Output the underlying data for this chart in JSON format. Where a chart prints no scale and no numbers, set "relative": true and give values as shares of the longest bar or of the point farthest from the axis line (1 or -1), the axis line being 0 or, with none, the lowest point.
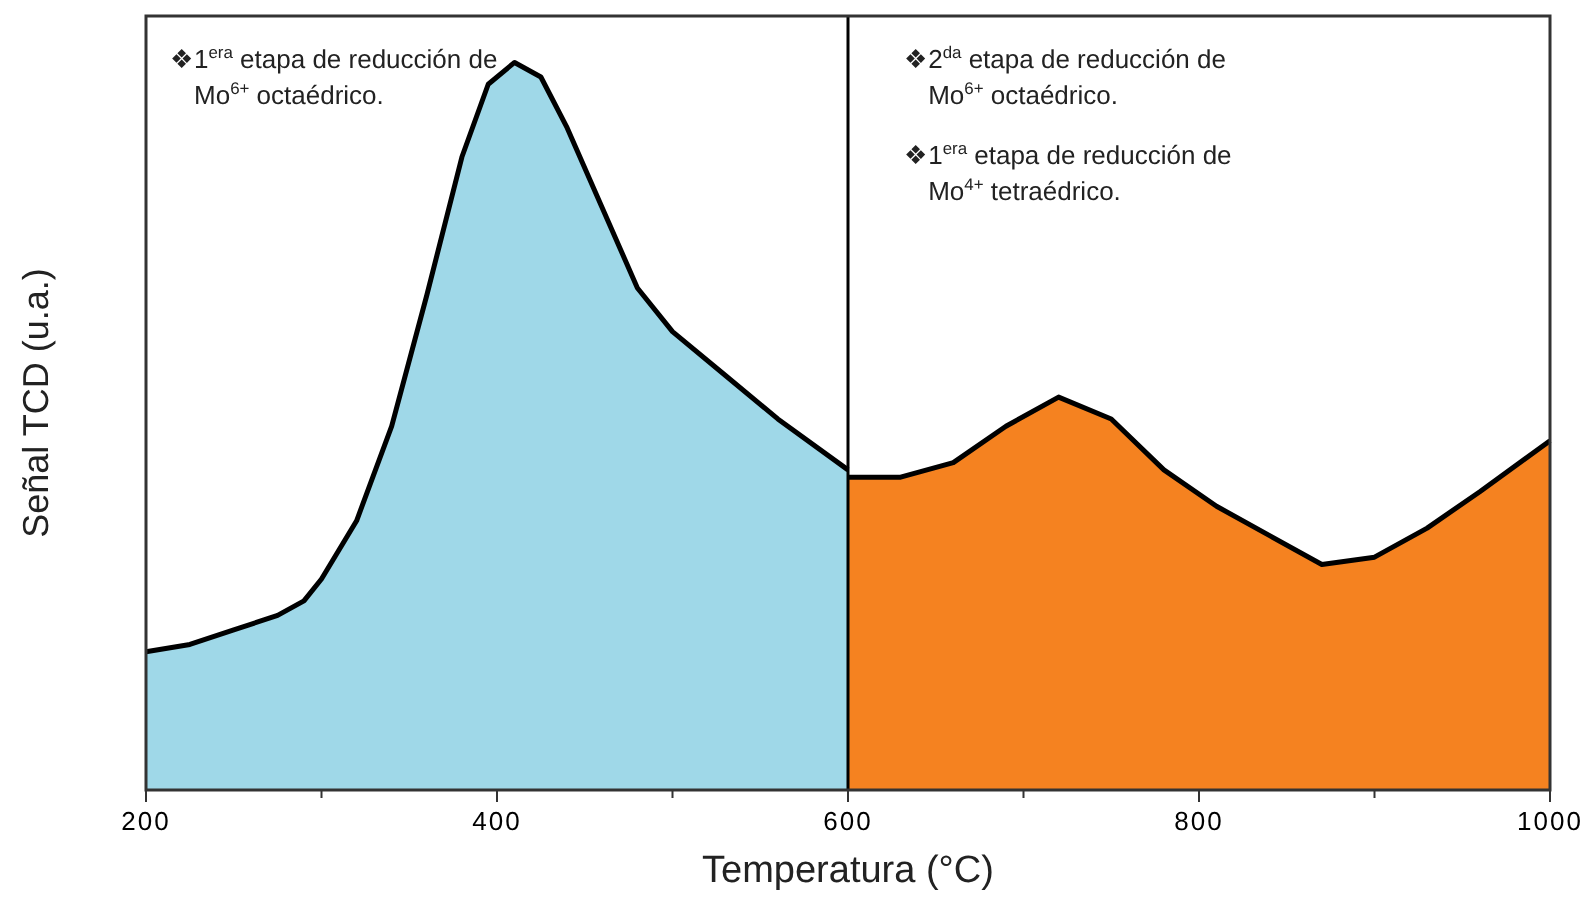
{
  "chart_data": {
    "type": "area",
    "relative": true,
    "xlabel": "Temperatura (°C)",
    "ylabel": "Señal TCD (u.a.)",
    "xlim": [
      200,
      1000
    ],
    "xticks": [
      200,
      400,
      600,
      800,
      1000
    ],
    "series": [
      {
        "color": "#9fd8e8",
        "x": [
          200,
          225,
          250,
          275,
          290,
          300,
          320,
          340,
          360,
          380,
          395,
          410,
          425,
          440,
          460,
          480,
          500,
          530,
          560,
          600
        ],
        "values": [
          0.19,
          0.2,
          0.22,
          0.24,
          0.26,
          0.29,
          0.37,
          0.5,
          0.68,
          0.87,
          0.97,
          1,
          0.98,
          0.91,
          0.8,
          0.69,
          0.63,
          0.57,
          0.51,
          0.44
        ]
      },
      {
        "color": "#f58220",
        "x": [
          600,
          630,
          660,
          690,
          720,
          750,
          780,
          810,
          840,
          870,
          900,
          930,
          960,
          1000
        ],
        "values": [
          0.43,
          0.43,
          0.45,
          0.5,
          0.54,
          0.51,
          0.44,
          0.39,
          0.35,
          0.31,
          0.32,
          0.36,
          0.41,
          0.48
        ]
      }
    ],
    "ref_lines": [
      {
        "axis": "x",
        "value": 600,
        "color": "#000000"
      }
    ],
    "annotations": [
      "❖1$^{era}$ etapa de reducción de Mo$^{6+}$ octaédrico.",
      "❖2$^{da}$ etapa de reducción de Mo$^{6+}$ octaédrico.",
      "❖1$^{era}$ etapa de reducción de Mo$^{4+}$ tetraédrico."
    ],
    "grid": false
  }
}
